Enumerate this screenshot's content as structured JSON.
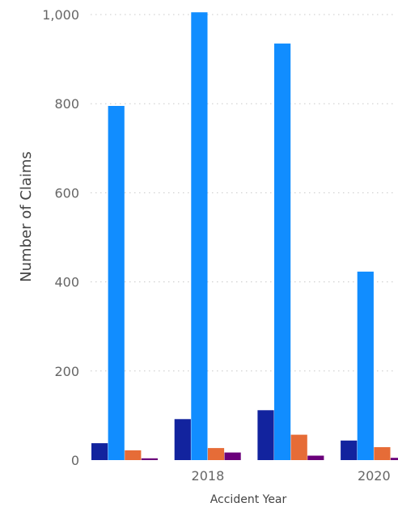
{
  "chart_data": {
    "type": "bar",
    "xlabel": "Accident Year",
    "ylabel": "Number of Claims",
    "ylim": [
      0,
      1000
    ],
    "yticks": [
      0,
      200,
      400,
      600,
      800,
      1000
    ],
    "ytick_labels": [
      "0",
      "200",
      "400",
      "600",
      "800",
      "1,000"
    ],
    "grid": true,
    "groups": [
      {
        "label": "",
        "values": [
          38,
          795,
          22,
          4
        ]
      },
      {
        "label": "2018",
        "values": [
          92,
          1005,
          27,
          17
        ]
      },
      {
        "label": "",
        "values": [
          112,
          935,
          57,
          10
        ]
      },
      {
        "label": "2020",
        "values": [
          44,
          423,
          29,
          5
        ]
      }
    ],
    "series_colors": [
      "#12239e",
      "#118dff",
      "#e66c37",
      "#6b007b"
    ]
  }
}
